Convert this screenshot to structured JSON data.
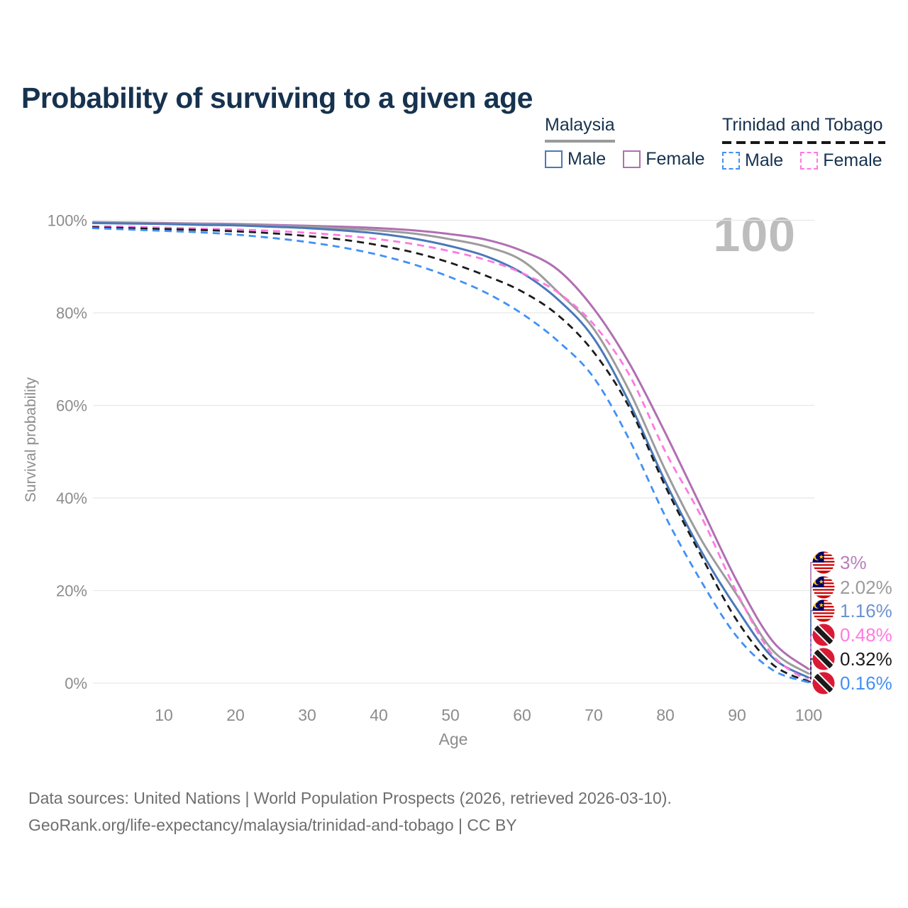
{
  "header": {
    "title": "Probability of surviving to a given age"
  },
  "legend": {
    "groups": [
      {
        "country": "Malaysia",
        "line_style": "solid",
        "underline_color": "#9a9a9a",
        "items": [
          {
            "label": "Male",
            "color": "#4a79b8",
            "dashed": false
          },
          {
            "label": "Female",
            "color": "#b06fb2",
            "dashed": false
          }
        ]
      },
      {
        "country": "Trinidad and Tobago",
        "line_style": "dashed",
        "underline_color": "#1c1c1c",
        "items": [
          {
            "label": "Male",
            "color": "#4191f5",
            "dashed": true
          },
          {
            "label": "Female",
            "color": "#ff79e1",
            "dashed": true
          }
        ]
      }
    ]
  },
  "chart_data": {
    "type": "line",
    "x": [
      0,
      5,
      10,
      15,
      20,
      25,
      30,
      35,
      40,
      45,
      50,
      55,
      60,
      65,
      70,
      75,
      80,
      85,
      90,
      95,
      100
    ],
    "xlabel": "Age",
    "ylabel": "Survival probability",
    "xlim": [
      0,
      100
    ],
    "ylim": [
      0,
      100
    ],
    "grid": "horizontal",
    "legend_position": "top-right",
    "hover_age_label": "100",
    "yticks": [
      {
        "value": 0,
        "label": "0%"
      },
      {
        "value": 20,
        "label": "20%"
      },
      {
        "value": 40,
        "label": "40%"
      },
      {
        "value": 60,
        "label": "60%"
      },
      {
        "value": 80,
        "label": "80%"
      },
      {
        "value": 100,
        "label": "100%"
      }
    ],
    "xticks": [
      10,
      20,
      30,
      40,
      50,
      60,
      70,
      80,
      90,
      100
    ],
    "series": [
      {
        "name": "Malaysia Female",
        "country": "Malaysia",
        "sex": "Female",
        "style": "solid",
        "color": "#b06fb2",
        "end_label": "3%",
        "end_label_color": "#b97fbb",
        "values": [
          99.6,
          99.5,
          99.4,
          99.3,
          99.2,
          99.0,
          98.8,
          98.6,
          98.3,
          97.8,
          97.0,
          95.8,
          93.4,
          89.3,
          80.9,
          69.0,
          54.0,
          38.0,
          22.0,
          9.0,
          3.0
        ]
      },
      {
        "name": "Malaysia All",
        "country": "Malaysia",
        "sex": "All",
        "style": "solid",
        "color": "#9c9c9c",
        "end_label": "2.02%",
        "end_label_color": "#9b9b9b",
        "values": [
          99.5,
          99.4,
          99.3,
          99.2,
          99.0,
          98.8,
          98.6,
          98.2,
          97.8,
          97.1,
          95.9,
          94.3,
          91.3,
          84.5,
          76.5,
          63.0,
          46.0,
          31.0,
          19.0,
          7.0,
          2.02
        ]
      },
      {
        "name": "Malaysia Male",
        "country": "Malaysia",
        "sex": "Male",
        "style": "solid",
        "color": "#4a79b8",
        "end_label": "1.16%",
        "end_label_color": "#6e93ce",
        "values": [
          99.4,
          99.3,
          99.2,
          99.0,
          98.9,
          98.6,
          98.3,
          97.8,
          97.1,
          96.0,
          94.4,
          92.2,
          88.6,
          82.9,
          74.5,
          60.5,
          43.5,
          28.5,
          16.0,
          5.5,
          1.16
        ]
      },
      {
        "name": "Trinidad and Tobago Female",
        "country": "Trinidad and Tobago",
        "sex": "Female",
        "style": "dashed",
        "color": "#ff79e1",
        "end_label": "0.48%",
        "end_label_color": "#ff7be0",
        "values": [
          98.7,
          98.6,
          98.4,
          98.2,
          98.0,
          97.7,
          97.3,
          96.7,
          95.9,
          94.8,
          93.3,
          91.4,
          88.6,
          84.4,
          77.5,
          66.5,
          50.0,
          36.0,
          19.5,
          6.0,
          0.48
        ]
      },
      {
        "name": "Trinidad and Tobago All",
        "country": "Trinidad and Tobago",
        "sex": "All",
        "style": "dashed",
        "color": "#1c1c1c",
        "end_label": "0.32%",
        "end_label_color": "#1c1c1c",
        "values": [
          98.5,
          98.3,
          98.1,
          97.9,
          97.6,
          97.2,
          96.6,
          95.8,
          94.6,
          93.0,
          90.8,
          88.0,
          84.6,
          79.5,
          71.5,
          59.5,
          42.5,
          27.5,
          13.5,
          4.0,
          0.32
        ]
      },
      {
        "name": "Trinidad and Tobago Male",
        "country": "Trinidad and Tobago",
        "sex": "Male",
        "style": "dashed",
        "color": "#4191f5",
        "end_label": "0.16%",
        "end_label_color": "#4191f5",
        "values": [
          98.3,
          98.0,
          97.7,
          97.4,
          96.9,
          96.2,
          95.3,
          94.1,
          92.5,
          90.4,
          87.7,
          84.3,
          79.8,
          73.9,
          66.0,
          52.5,
          36.0,
          22.0,
          10.0,
          2.8,
          0.16
        ]
      }
    ]
  },
  "footer": {
    "line1": "Data sources: United Nations | World Population Prospects (2026, retrieved 2026-03-10).",
    "line2": "GeoRank.org/life-expectancy/malaysia/trinidad-and-tobago | CC BY"
  }
}
